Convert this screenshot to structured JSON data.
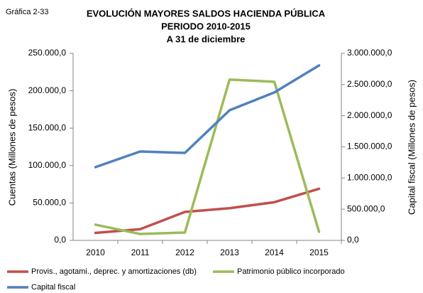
{
  "chart_data": {
    "type": "line",
    "figure_label": "Gráfica 2-33",
    "title": [
      "EVOLUCIÓN MAYORES SALDOS HACIENDA PÚBLICA",
      "PERIODO 2010-2015",
      "A 31 de diciembre"
    ],
    "ylabel": "Cuentas (Millones de pesos)",
    "y2label": "Capital fiscal (Millones de pesos)",
    "categories": [
      "2010",
      "2011",
      "2012",
      "2013",
      "2014",
      "2015"
    ],
    "ylim": [
      0,
      250000
    ],
    "yticks": [
      {
        "value": 0,
        "label": "0,0"
      },
      {
        "value": 50000,
        "label": "50.000,0"
      },
      {
        "value": 100000,
        "label": "100.000,0"
      },
      {
        "value": 150000,
        "label": "150.000,0"
      },
      {
        "value": 200000,
        "label": "200.000,0"
      },
      {
        "value": 250000,
        "label": "250.000,0"
      }
    ],
    "y2lim": [
      0,
      3000000
    ],
    "y2ticks": [
      {
        "value": 0,
        "label": "0,0"
      },
      {
        "value": 500000,
        "label": "500.000,0"
      },
      {
        "value": 1000000,
        "label": "1.000.000,0"
      },
      {
        "value": 1500000,
        "label": "1.500.000,0"
      },
      {
        "value": 2000000,
        "label": "2.000.000,0"
      },
      {
        "value": 2500000,
        "label": "2.500.000,0"
      },
      {
        "value": 3000000,
        "label": "3.000.000,0"
      }
    ],
    "legend": "bottom",
    "series": [
      {
        "name": "Provis., agotami., deprec. y amortizaciones (db)",
        "color": "#c0504d",
        "values": [
          10000,
          15000,
          38000,
          43000,
          51000,
          69000
        ]
      },
      {
        "name": "Patrimonio público incorporado",
        "color": "#9bbb59",
        "values": [
          21000,
          8500,
          10500,
          215000,
          212000,
          11500
        ]
      },
      {
        "name": "Capital fiscal",
        "color": "#4f81bd",
        "axis": "y2",
        "values": [
          1175000,
          1426000,
          1403000,
          2087000,
          2373000,
          2806000
        ]
      }
    ]
  }
}
